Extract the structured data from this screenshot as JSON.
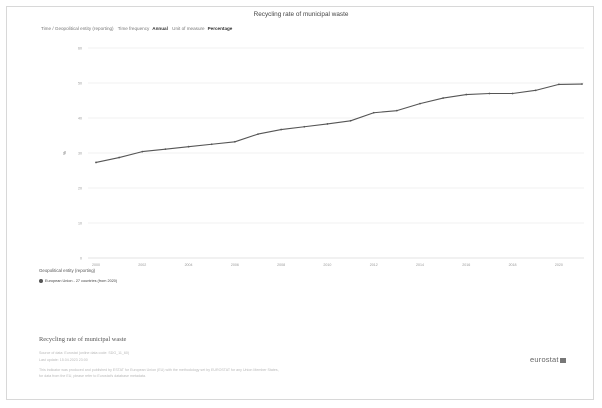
{
  "chart_data": {
    "type": "line",
    "title": "Recycling rate of municipal waste",
    "xlabel": "",
    "ylabel": "%",
    "x": [
      "2000",
      "2001",
      "2002",
      "2003",
      "2004",
      "2005",
      "2006",
      "2007",
      "2008",
      "2009",
      "2010",
      "2011",
      "2012",
      "2013",
      "2014",
      "2015",
      "2016",
      "2017",
      "2018",
      "2019",
      "2020",
      "2021"
    ],
    "x_tick_labels": [
      "2000",
      "2002",
      "2004",
      "2006",
      "2008",
      "2010",
      "2012",
      "2014",
      "2016",
      "2018",
      "2020"
    ],
    "y_tick_labels": [
      "0",
      "10",
      "20",
      "30",
      "40",
      "50",
      "60"
    ],
    "ylim": [
      0,
      60
    ],
    "grid": true,
    "legend_placement": "bottom-left",
    "series": [
      {
        "name": "European Union - 27 countries (from 2020)",
        "values": [
          27.3,
          28.7,
          30.4,
          31.1,
          31.8,
          32.5,
          33.2,
          35.4,
          36.7,
          37.5,
          38.3,
          39.2,
          41.5,
          42.1,
          44.1,
          45.7,
          46.7,
          47.0,
          47.0,
          47.9,
          49.6,
          49.7
        ]
      }
    ],
    "colors": {
      "line": "#555555",
      "grid": "#e6e6e6"
    }
  },
  "meta": {
    "label_1": "Time / Geopolitical entity (reporting)",
    "label_2": "Time frequency",
    "value_2": "Annual",
    "label_3": "Unit of measure",
    "value_3": "Percentage"
  },
  "legend": {
    "title": "Geopolitical entity (reporting)",
    "item": "European Union - 27 countries (from 2020)"
  },
  "footer": {
    "title": "Recycling rate of municipal waste",
    "source": "Source of data: Eurostat (online data code: SDG_11_60)",
    "updated": "Last update: 15.04.2023 23:00",
    "note_1": "This indicator was produced and published by ESTAT for European Union (EU) with the methodology set by EUROSTAT for any Union Member States,",
    "note_2": "for data from the EU, please refer to Eurostat's database metadata."
  },
  "logo": {
    "text": "eurostat"
  }
}
